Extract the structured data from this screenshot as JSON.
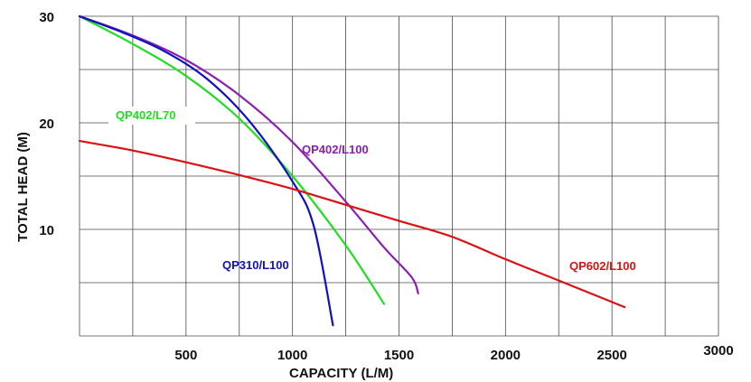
{
  "chart_data": {
    "type": "line",
    "xlabel": "CAPACITY (L/M)",
    "ylabel": "TOTAL HEAD (M)",
    "xlim": [
      0,
      3000
    ],
    "ylim": [
      0,
      30
    ],
    "x_ticks": [
      {
        "value": 500,
        "label": "500"
      },
      {
        "value": 1000,
        "label": "1000"
      },
      {
        "value": 1500,
        "label": "1500"
      },
      {
        "value": 2000,
        "label": "2000"
      },
      {
        "value": 2500,
        "label": "2500"
      },
      {
        "value": 3000,
        "label": "3000"
      }
    ],
    "y_ticks": [
      {
        "value": 10,
        "label": "10"
      },
      {
        "value": 20,
        "label": "20"
      },
      {
        "value": 30,
        "label": "30"
      }
    ],
    "grid": true,
    "legend": "none",
    "series": [
      {
        "name": "QP402/L70",
        "color": "#22dd22",
        "points": [
          [
            0,
            30
          ],
          [
            250,
            27.4
          ],
          [
            500,
            24.4
          ],
          [
            750,
            20.4
          ],
          [
            1000,
            15
          ],
          [
            1250,
            8.5
          ],
          [
            1430,
            3
          ]
        ]
      },
      {
        "name": "QP402/L100",
        "color": "#8a1fb0",
        "points": [
          [
            0,
            30
          ],
          [
            250,
            28.2
          ],
          [
            500,
            25.9
          ],
          [
            750,
            22.6
          ],
          [
            1000,
            18.2
          ],
          [
            1250,
            12.6
          ],
          [
            1430,
            8.3
          ],
          [
            1560,
            5.5
          ],
          [
            1590,
            4
          ]
        ]
      },
      {
        "name": "QP310/L100",
        "color": "#1010c0",
        "points": [
          [
            0,
            30
          ],
          [
            200,
            28.5
          ],
          [
            400,
            26.7
          ],
          [
            600,
            24.1
          ],
          [
            800,
            20.1
          ],
          [
            1000,
            14.5
          ],
          [
            1100,
            10.3
          ],
          [
            1190,
            1
          ]
        ]
      },
      {
        "name": "QP602/L100",
        "color": "#dd1111",
        "points": [
          [
            0,
            18.3
          ],
          [
            250,
            17.4
          ],
          [
            500,
            16.3
          ],
          [
            750,
            15.1
          ],
          [
            1000,
            13.8
          ],
          [
            1250,
            12.3
          ],
          [
            1500,
            10.8
          ],
          [
            1750,
            9.3
          ],
          [
            2000,
            7.2
          ],
          [
            2250,
            5.2
          ],
          [
            2560,
            2.7
          ]
        ]
      }
    ]
  }
}
